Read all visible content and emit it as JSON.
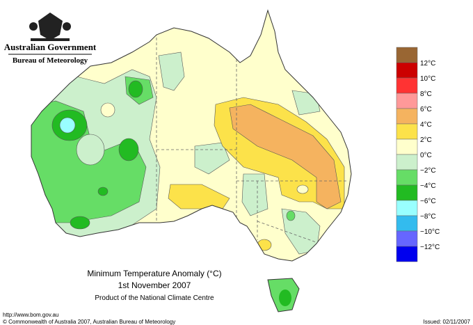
{
  "header": {
    "title": "Australian Government",
    "subtitle": "Bureau of Meteorology"
  },
  "map": {
    "title": "Minimum Temperature Anomaly (°C)",
    "date": "1st November 2007",
    "source": "Product of the National Climate Centre"
  },
  "legend": {
    "labels": [
      "12°C",
      "10°C",
      "8°C",
      "6°C",
      "4°C",
      "2°C",
      "0°C",
      "−2°C",
      "−4°C",
      "−6°C",
      "−8°C",
      "−10°C",
      "−12°C"
    ],
    "colors": [
      "#996633",
      "#cc0000",
      "#ff3333",
      "#ff9999",
      "#f5b35f",
      "#fce24a",
      "#ffffcc",
      "#ccf0cc",
      "#66dd66",
      "#22bb22",
      "#99ffff",
      "#33bbee",
      "#6666ff",
      "#0000ee"
    ]
  },
  "footer": {
    "url": "http://www.bom.gov.au",
    "copyright": "© Commonwealth of Australia 2007, Australian Bureau of Meteorology",
    "issued": "Issued: 02/11/2007"
  }
}
